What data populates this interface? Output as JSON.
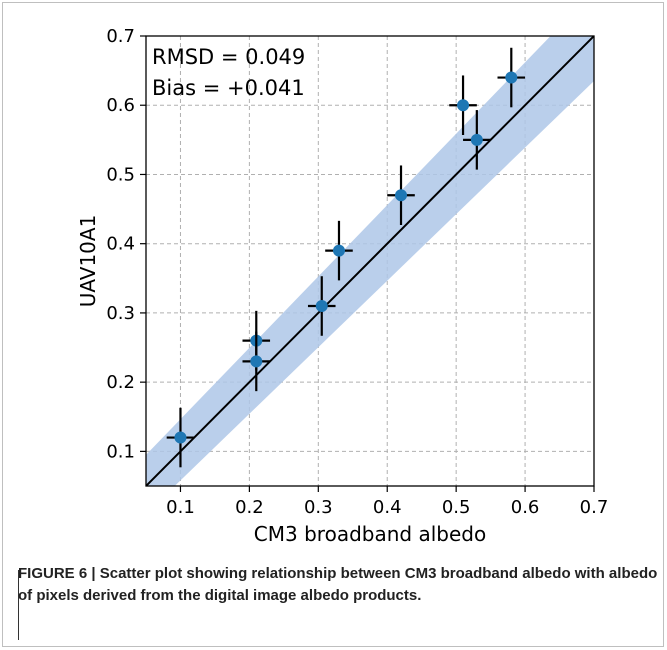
{
  "chart_data": {
    "type": "scatter",
    "xlabel": "CM3 broadband albedo",
    "ylabel": "UAV10A1",
    "xlim": [
      0.05,
      0.7
    ],
    "ylim": [
      0.05,
      0.7
    ],
    "xticks": [
      "0.1",
      "0.2",
      "0.3",
      "0.4",
      "0.5",
      "0.6",
      "0.7"
    ],
    "yticks": [
      "0.1",
      "0.2",
      "0.3",
      "0.4",
      "0.5",
      "0.6",
      "0.7"
    ],
    "grid": true,
    "annotations": [
      "RMSD = 0.049",
      "Bias = +0.041"
    ],
    "one_to_one_line": true,
    "confidence_band": {
      "upper": [
        [
          0.05,
          0.095
        ],
        [
          0.7,
          0.765
        ]
      ],
      "lower": [
        [
          0.05,
          0.01
        ],
        [
          0.7,
          0.635
        ]
      ]
    },
    "points": [
      {
        "x": 0.1,
        "y": 0.12,
        "xerr": 0.02,
        "yerr": 0.043
      },
      {
        "x": 0.21,
        "y": 0.26,
        "xerr": 0.02,
        "yerr": 0.043
      },
      {
        "x": 0.21,
        "y": 0.23,
        "xerr": 0.02,
        "yerr": 0.043
      },
      {
        "x": 0.305,
        "y": 0.31,
        "xerr": 0.02,
        "yerr": 0.043
      },
      {
        "x": 0.33,
        "y": 0.39,
        "xerr": 0.02,
        "yerr": 0.043
      },
      {
        "x": 0.42,
        "y": 0.47,
        "xerr": 0.02,
        "yerr": 0.043
      },
      {
        "x": 0.51,
        "y": 0.6,
        "xerr": 0.02,
        "yerr": 0.043
      },
      {
        "x": 0.53,
        "y": 0.55,
        "xerr": 0.02,
        "yerr": 0.043
      },
      {
        "x": 0.58,
        "y": 0.64,
        "xerr": 0.02,
        "yerr": 0.043
      }
    ],
    "colors": {
      "point": "#1f77b4",
      "band": "#aec7e8",
      "line": "#000000",
      "grid": "#b0b0b0"
    }
  },
  "caption": {
    "label": "FIGURE 6 |",
    "text": "Scatter plot showing relationship between CM3 broadband albedo with albedo of pixels derived from the digital image albedo products."
  }
}
